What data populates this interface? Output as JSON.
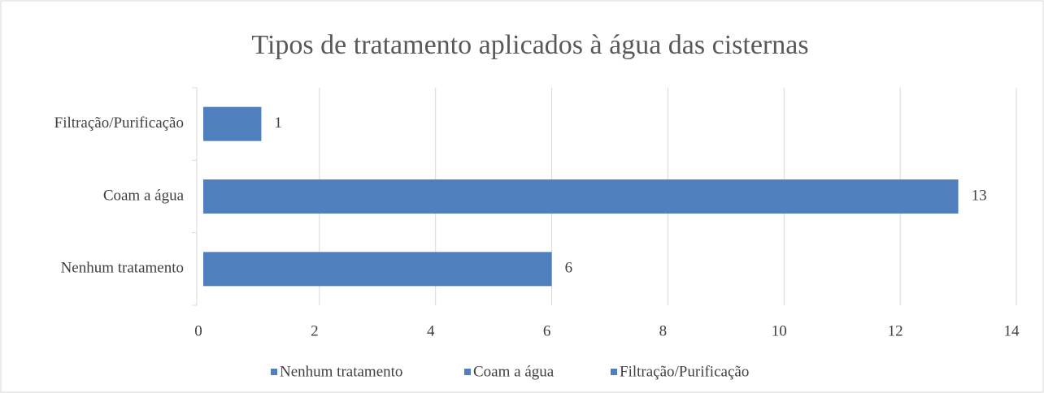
{
  "chart_data": {
    "type": "hbar",
    "title": "Tipos de tratamento aplicados à água das cisternas",
    "categories": [
      "Nenhum tratamento",
      "Coam a água",
      "Filtração/Purificação"
    ],
    "values": [
      6,
      13,
      1
    ],
    "color": "#4f80bd",
    "xlim": [
      0,
      14
    ],
    "xticks": [
      0,
      2,
      4,
      6,
      8,
      10,
      12,
      14
    ],
    "grid": true,
    "legend": "bottom"
  }
}
